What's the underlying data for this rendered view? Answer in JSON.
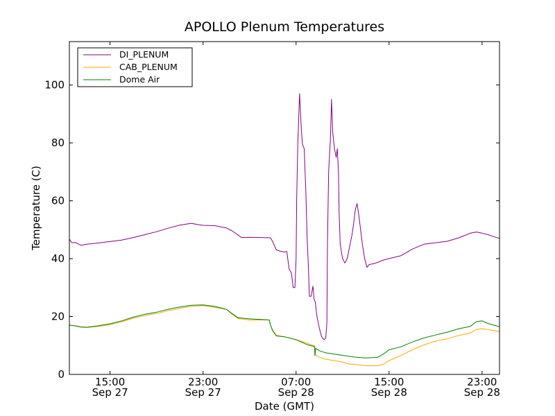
{
  "chart_data": {
    "type": "line",
    "title": "APOLLO Plenum Temperatures",
    "xlabel": "Date (GMT)",
    "ylabel": "Temperature (C)",
    "xlim": [
      11.5,
      48.5
    ],
    "ylim": [
      0,
      115
    ],
    "x_unit": "hours since Sep 27 00:00 GMT",
    "x_ticks": [
      {
        "x": 15,
        "time": "15:00",
        "date": "Sep 27"
      },
      {
        "x": 23,
        "time": "23:00",
        "date": "Sep 27"
      },
      {
        "x": 31,
        "time": "07:00",
        "date": "Sep 28"
      },
      {
        "x": 39,
        "time": "15:00",
        "date": "Sep 28"
      },
      {
        "x": 47,
        "time": "23:00",
        "date": "Sep 28"
      }
    ],
    "y_ticks": [
      0,
      20,
      40,
      60,
      80,
      100
    ],
    "legend": {
      "location": "top-left",
      "entries": [
        "DI_PLENUM",
        "CAB_PLENUM",
        "Dome Air"
      ]
    },
    "series": [
      {
        "name": "DI_PLENUM",
        "color": "#800080",
        "points": [
          [
            11.5,
            46.8
          ],
          [
            11.7,
            45.5
          ],
          [
            12.0,
            45.6
          ],
          [
            12.5,
            44.6
          ],
          [
            13.0,
            45.0
          ],
          [
            14.0,
            45.4
          ],
          [
            15.0,
            45.9
          ],
          [
            16.0,
            46.4
          ],
          [
            17.0,
            47.3
          ],
          [
            18.0,
            48.3
          ],
          [
            19.0,
            49.3
          ],
          [
            20.0,
            50.5
          ],
          [
            21.0,
            51.6
          ],
          [
            22.0,
            52.2
          ],
          [
            22.5,
            51.8
          ],
          [
            23.0,
            51.5
          ],
          [
            24.0,
            51.4
          ],
          [
            25.0,
            50.6
          ],
          [
            25.5,
            49.6
          ],
          [
            26.0,
            48.2
          ],
          [
            26.3,
            47.3
          ],
          [
            27.0,
            47.4
          ],
          [
            28.0,
            47.3
          ],
          [
            28.8,
            47.2
          ],
          [
            29.0,
            45.8
          ],
          [
            29.3,
            43.0
          ],
          [
            29.7,
            42.5
          ],
          [
            30.0,
            42.3
          ],
          [
            30.2,
            42.5
          ],
          [
            30.4,
            36.5
          ],
          [
            30.6,
            35.0
          ],
          [
            30.75,
            30.0
          ],
          [
            30.9,
            30.0
          ],
          [
            31.0,
            40.0
          ],
          [
            31.05,
            60.0
          ],
          [
            31.15,
            80.0
          ],
          [
            31.3,
            97.0
          ],
          [
            31.45,
            85.0
          ],
          [
            31.55,
            79.5
          ],
          [
            31.7,
            78.0
          ],
          [
            31.85,
            62.0
          ],
          [
            31.95,
            47.0
          ],
          [
            32.05,
            38.0
          ],
          [
            32.15,
            27.0
          ],
          [
            32.3,
            27.0
          ],
          [
            32.45,
            30.5
          ],
          [
            32.55,
            26.0
          ],
          [
            32.65,
            25.0
          ],
          [
            32.8,
            20.0
          ],
          [
            33.0,
            16.0
          ],
          [
            33.2,
            13.0
          ],
          [
            33.4,
            12.0
          ],
          [
            33.55,
            12.5
          ],
          [
            33.65,
            18.0
          ],
          [
            33.7,
            45.0
          ],
          [
            33.8,
            70.0
          ],
          [
            33.95,
            81.0
          ],
          [
            34.05,
            95.0
          ],
          [
            34.15,
            84.0
          ],
          [
            34.3,
            78.0
          ],
          [
            34.45,
            75.0
          ],
          [
            34.55,
            78.0
          ],
          [
            34.65,
            70.0
          ],
          [
            34.7,
            56.0
          ],
          [
            34.8,
            45.0
          ],
          [
            35.0,
            40.0
          ],
          [
            35.2,
            38.5
          ],
          [
            35.4,
            40.0
          ],
          [
            35.6,
            44.0
          ],
          [
            35.8,
            48.0
          ],
          [
            35.95,
            52.0
          ],
          [
            36.1,
            57.0
          ],
          [
            36.25,
            59.0
          ],
          [
            36.4,
            55.0
          ],
          [
            36.55,
            50.0
          ],
          [
            36.7,
            45.0
          ],
          [
            36.9,
            40.0
          ],
          [
            37.1,
            37.0
          ],
          [
            37.3,
            38.0
          ],
          [
            37.6,
            38.2
          ],
          [
            38.0,
            38.7
          ],
          [
            38.5,
            39.5
          ],
          [
            39.0,
            40.0
          ],
          [
            40.0,
            41.0
          ],
          [
            41.0,
            43.3
          ],
          [
            42.0,
            45.0
          ],
          [
            43.0,
            45.5
          ],
          [
            44.0,
            46.0
          ],
          [
            45.0,
            47.2
          ],
          [
            46.0,
            48.8
          ],
          [
            46.5,
            49.2
          ],
          [
            47.0,
            48.8
          ],
          [
            47.5,
            48.3
          ],
          [
            48.0,
            47.6
          ],
          [
            48.5,
            47.0
          ]
        ]
      },
      {
        "name": "CAB_PLENUM",
        "color": "#ffa500",
        "points": [
          [
            11.5,
            17.0
          ],
          [
            12.0,
            16.7
          ],
          [
            12.5,
            16.3
          ],
          [
            13.0,
            16.2
          ],
          [
            14.0,
            16.6
          ],
          [
            15.0,
            17.2
          ],
          [
            16.0,
            18.2
          ],
          [
            17.0,
            19.4
          ],
          [
            18.0,
            20.4
          ],
          [
            19.0,
            21.0
          ],
          [
            20.0,
            22.0
          ],
          [
            21.0,
            22.8
          ],
          [
            22.0,
            23.5
          ],
          [
            23.0,
            23.8
          ],
          [
            24.0,
            23.2
          ],
          [
            25.0,
            22.5
          ],
          [
            25.5,
            20.8
          ],
          [
            26.0,
            19.3
          ],
          [
            27.0,
            18.8
          ],
          [
            28.0,
            18.8
          ],
          [
            28.7,
            18.8
          ],
          [
            28.8,
            17.0
          ],
          [
            29.0,
            15.2
          ],
          [
            29.3,
            13.5
          ],
          [
            30.0,
            13.0
          ],
          [
            31.0,
            12.0
          ],
          [
            32.0,
            10.7
          ],
          [
            32.6,
            9.8
          ],
          [
            32.62,
            7.2
          ],
          [
            32.8,
            6.3
          ],
          [
            33.5,
            5.3
          ],
          [
            34.5,
            4.6
          ],
          [
            35.0,
            4.3
          ],
          [
            35.5,
            3.6
          ],
          [
            36.0,
            3.5
          ],
          [
            37.0,
            3.0
          ],
          [
            38.0,
            3.0
          ],
          [
            38.5,
            3.5
          ],
          [
            39.0,
            4.8
          ],
          [
            40.0,
            6.5
          ],
          [
            41.0,
            8.5
          ],
          [
            42.0,
            10.2
          ],
          [
            43.0,
            11.5
          ],
          [
            44.0,
            12.3
          ],
          [
            45.0,
            13.5
          ],
          [
            46.0,
            14.3
          ],
          [
            46.5,
            15.5
          ],
          [
            47.0,
            15.8
          ],
          [
            47.5,
            15.5
          ],
          [
            48.0,
            15.2
          ],
          [
            48.5,
            14.8
          ]
        ]
      },
      {
        "name": "Dome Air",
        "color": "#008000",
        "points": [
          [
            11.5,
            17.0
          ],
          [
            12.0,
            16.8
          ],
          [
            12.5,
            16.4
          ],
          [
            13.0,
            16.3
          ],
          [
            14.0,
            16.8
          ],
          [
            15.0,
            17.5
          ],
          [
            16.0,
            18.5
          ],
          [
            17.0,
            19.8
          ],
          [
            18.0,
            20.8
          ],
          [
            19.0,
            21.5
          ],
          [
            20.0,
            22.5
          ],
          [
            21.0,
            23.3
          ],
          [
            22.0,
            23.9
          ],
          [
            23.0,
            24.0
          ],
          [
            24.0,
            23.5
          ],
          [
            25.0,
            22.5
          ],
          [
            25.5,
            21.0
          ],
          [
            26.0,
            19.6
          ],
          [
            27.0,
            19.2
          ],
          [
            28.0,
            19.0
          ],
          [
            28.7,
            18.8
          ],
          [
            28.8,
            17.0
          ],
          [
            29.0,
            15.0
          ],
          [
            29.3,
            13.3
          ],
          [
            30.0,
            13.0
          ],
          [
            31.0,
            12.0
          ],
          [
            32.0,
            10.2
          ],
          [
            32.6,
            9.6
          ],
          [
            32.62,
            6.5
          ],
          [
            32.7,
            9.0
          ],
          [
            33.0,
            8.2
          ],
          [
            33.5,
            7.5
          ],
          [
            34.5,
            6.9
          ],
          [
            35.0,
            6.6
          ],
          [
            36.0,
            6.0
          ],
          [
            37.0,
            5.7
          ],
          [
            38.0,
            5.9
          ],
          [
            38.5,
            7.0
          ],
          [
            39.0,
            8.5
          ],
          [
            40.0,
            9.5
          ],
          [
            41.0,
            11.2
          ],
          [
            42.0,
            12.6
          ],
          [
            43.0,
            13.6
          ],
          [
            44.0,
            14.6
          ],
          [
            45.0,
            15.8
          ],
          [
            46.0,
            16.6
          ],
          [
            46.5,
            18.2
          ],
          [
            47.0,
            18.5
          ],
          [
            47.5,
            17.6
          ],
          [
            48.0,
            17.0
          ],
          [
            48.5,
            16.5
          ]
        ]
      }
    ]
  }
}
